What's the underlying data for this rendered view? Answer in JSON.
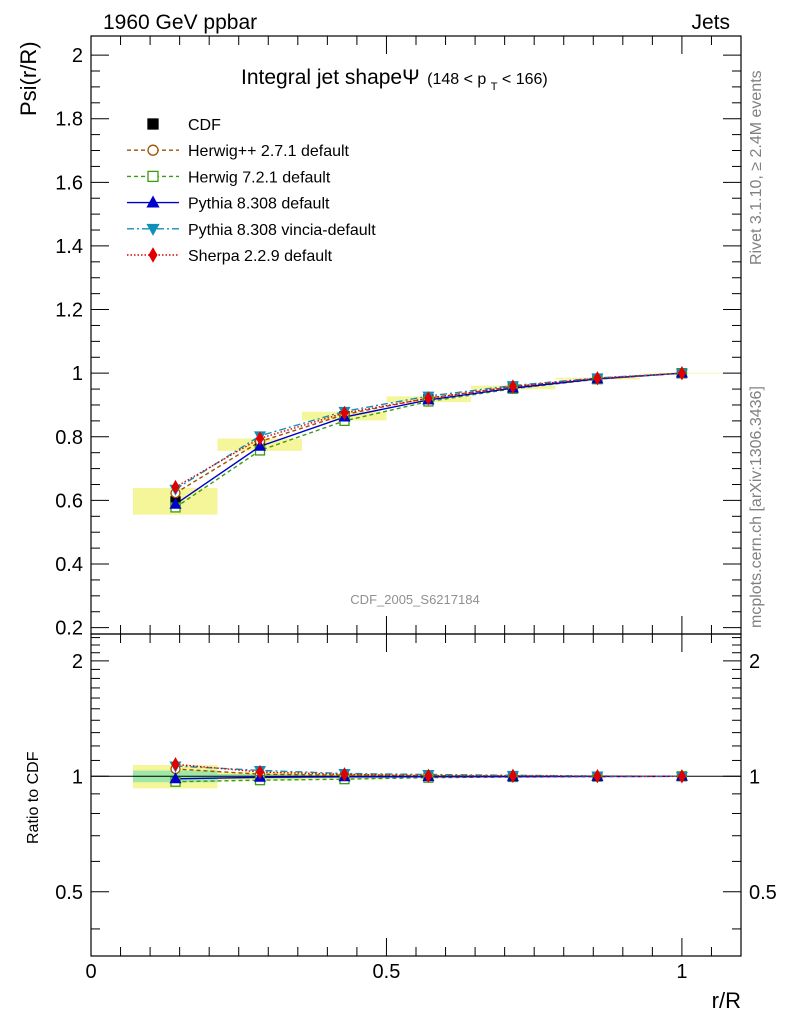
{
  "header": {
    "left": "1960 GeV ppbar",
    "right": "Jets"
  },
  "side_labels": {
    "rivet": "Rivet 3.1.10, ≥ 2.4M events",
    "mcplots": "mcplots.cern.ch [arXiv:1306.3436]"
  },
  "watermark": "CDF_2005_S6217184",
  "title": {
    "main": "Integral jet shapeΨ",
    "range_prefix": "(148 < p",
    "range_sub": "T",
    "range_suffix": " < 166)"
  },
  "legend": [
    {
      "label": "CDF",
      "color": "#000000",
      "marker": "square-filled",
      "dash": ""
    },
    {
      "label": "Herwig++ 2.7.1 default",
      "color": "#a05000",
      "marker": "circle-open",
      "dash": "4,3"
    },
    {
      "label": "Herwig 7.2.1 default",
      "color": "#3a9c10",
      "marker": "square-open",
      "dash": "4,3"
    },
    {
      "label": "Pythia 8.308 default",
      "color": "#0000cc",
      "marker": "triangle-up",
      "dash": ""
    },
    {
      "label": "Pythia 8.308 vincia-default",
      "color": "#1090b8",
      "marker": "triangle-down",
      "dash": "7,3,2,3"
    },
    {
      "label": "Sherpa 2.2.9 default",
      "color": "#e00000",
      "marker": "diamond",
      "dash": "1.5,2"
    }
  ],
  "chart_data": {
    "type": "line",
    "ylabel": "Psi(r/R)",
    "xlabel": "r/R",
    "xlim": [
      0,
      1.1
    ],
    "ylim": [
      0.18,
      2.06
    ],
    "ratio_ylabel": "Ratio to CDF",
    "ratio_ylim": [
      0.34,
      2.35
    ],
    "x_ticks": [
      "0",
      "0.5",
      "1"
    ],
    "y_ticks": [
      "0.2",
      "0.4",
      "0.6",
      "0.8",
      "1",
      "1.2",
      "1.4",
      "1.6",
      "1.8",
      "2"
    ],
    "ratio_ticks": [
      "0.5",
      "1",
      "2"
    ],
    "x": [
      0.143,
      0.286,
      0.429,
      0.571,
      0.714,
      0.857,
      1.0
    ],
    "data": {
      "name": "CDF",
      "values": [
        0.597,
        0.775,
        0.865,
        0.918,
        0.955,
        0.983,
        1.0
      ]
    },
    "series": [
      {
        "name": "Herwig++ 2.7.1 default",
        "values": [
          0.623,
          0.785,
          0.87,
          0.922,
          0.957,
          0.983,
          1.0
        ],
        "ratio": [
          1.045,
          1.013,
          1.006,
          1.004,
          1.002,
          1.0,
          1.0
        ]
      },
      {
        "name": "Herwig 7.2.1 default",
        "values": [
          0.578,
          0.757,
          0.85,
          0.911,
          0.951,
          0.981,
          1.0
        ],
        "ratio": [
          0.968,
          0.977,
          0.983,
          0.992,
          0.996,
          0.998,
          1.0
        ]
      },
      {
        "name": "Pythia 8.308 default",
        "values": [
          0.588,
          0.77,
          0.862,
          0.916,
          0.953,
          0.982,
          1.0
        ],
        "ratio": [
          0.985,
          0.994,
          0.997,
          0.998,
          0.998,
          0.999,
          1.0
        ]
      },
      {
        "name": "Pythia 8.308 vincia-default",
        "values": [
          0.635,
          0.803,
          0.88,
          0.928,
          0.961,
          0.985,
          1.0
        ],
        "ratio": [
          1.064,
          1.036,
          1.017,
          1.011,
          1.006,
          1.002,
          1.0
        ]
      },
      {
        "name": "Sherpa 2.2.9 default",
        "values": [
          0.642,
          0.795,
          0.875,
          0.921,
          0.958,
          0.984,
          1.0
        ],
        "ratio": [
          1.075,
          1.026,
          1.012,
          1.003,
          1.003,
          1.001,
          1.0
        ]
      }
    ],
    "data_band": {
      "x": [
        [
          0.071,
          0.214
        ],
        [
          0.214,
          0.357
        ],
        [
          0.357,
          0.5
        ],
        [
          0.5,
          0.643
        ],
        [
          0.643,
          0.786
        ],
        [
          0.786,
          0.929
        ],
        [
          0.929,
          1.071
        ]
      ],
      "inner": [
        0.035,
        0.014,
        0.009,
        0.006,
        0.004,
        0.002,
        0.001
      ],
      "outer": [
        0.07,
        0.025,
        0.016,
        0.01,
        0.006,
        0.003,
        0.001
      ]
    }
  }
}
